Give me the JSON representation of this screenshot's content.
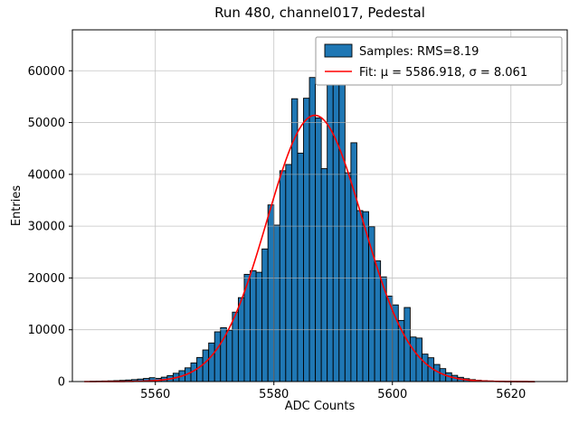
{
  "figure": {
    "background": "#ffffff"
  },
  "chart_data": {
    "type": "bar",
    "subtype": "histogram-with-fit",
    "title": "Run 480, channel017, Pedestal",
    "xlabel": "ADC Counts",
    "ylabel": "Entries",
    "xlim": [
      5546,
      5629.5
    ],
    "ylim": [
      0,
      67900
    ],
    "xticks": [
      5560,
      5580,
      5600,
      5620
    ],
    "yticks": [
      0,
      10000,
      20000,
      30000,
      40000,
      50000,
      60000
    ],
    "grid": true,
    "grid_color": "#b0b0b0",
    "bar_color": "#1f77b4",
    "bar_edge_color": "#000000",
    "fit_color": "#ff0000",
    "legend": {
      "entries": [
        {
          "type": "patch",
          "label": "Samples: RMS=8.19",
          "color": "#1f77b4"
        },
        {
          "type": "line",
          "label": "Fit: μ = 5586.918, σ = 8.061",
          "color": "#ff0000"
        }
      ]
    },
    "fit": {
      "mu": 5586.918,
      "sigma": 8.061,
      "amplitude": 51400,
      "x_start": 5548,
      "x_end": 5624
    },
    "bins": {
      "start": 5549,
      "width": 1,
      "counts": [
        60,
        80,
        110,
        140,
        180,
        230,
        300,
        380,
        480,
        600,
        750,
        620,
        850,
        1150,
        1600,
        2100,
        2650,
        3600,
        4650,
        6100,
        7450,
        9600,
        10400,
        9900,
        13400,
        16200,
        20700,
        21400,
        21100,
        25600,
        34100,
        30200,
        40700,
        41900,
        54600,
        44100,
        54700,
        58700,
        50900,
        41100,
        58600,
        57900,
        58800,
        40300,
        46100,
        33000,
        32800,
        29900,
        23300,
        20200,
        16500,
        14800,
        11800,
        14300,
        8600,
        8400,
        5300,
        4600,
        3300,
        2500,
        1700,
        1200,
        820,
        560,
        380,
        260,
        175,
        120,
        85,
        60,
        42,
        30,
        20,
        14,
        9
      ]
    }
  }
}
